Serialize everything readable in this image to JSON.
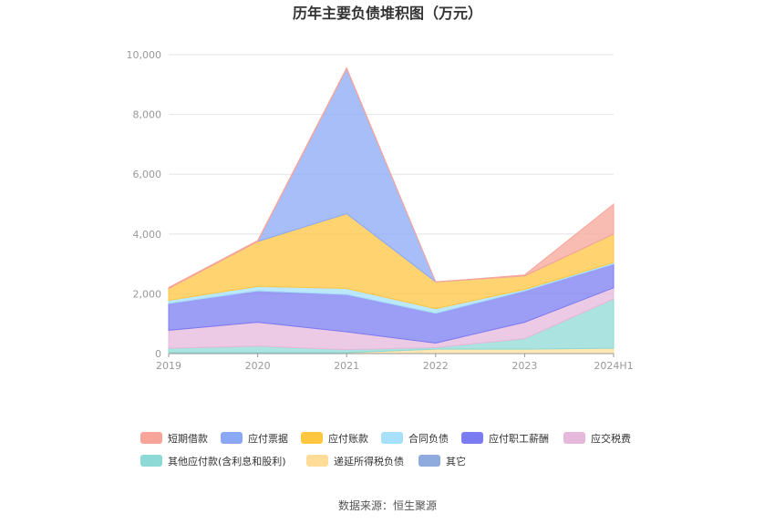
{
  "chart_data": {
    "type": "area",
    "stacked": true,
    "title": "历年主要负债堆积图（万元）",
    "x": [
      "2019",
      "2020",
      "2021",
      "2022",
      "2023",
      "2024H1"
    ],
    "ylim": [
      0,
      10000
    ],
    "yticks": [
      "0",
      "2,000",
      "4,000",
      "6,000",
      "8,000",
      "10,000"
    ],
    "grid": true,
    "legend_position": "bottom",
    "series": [
      {
        "name": "其它",
        "color": "#8faadc",
        "values": [
          0,
          0,
          0,
          0,
          0,
          0
        ]
      },
      {
        "name": "递延所得税负债",
        "color": "#ffdd99",
        "values": [
          30,
          30,
          30,
          150,
          150,
          180
        ]
      },
      {
        "name": "其他应付款(含利息和股利)",
        "color": "#8dd9d5",
        "values": [
          150,
          220,
          100,
          50,
          350,
          1650
        ]
      },
      {
        "name": "应交税费",
        "color": "#e6b8dc",
        "values": [
          600,
          800,
          600,
          150,
          550,
          370
        ]
      },
      {
        "name": "应付职工薪酬",
        "color": "#7b7cf2",
        "values": [
          900,
          1050,
          1250,
          1000,
          1050,
          800
        ]
      },
      {
        "name": "合同负债",
        "color": "#a6e0fa",
        "values": [
          100,
          150,
          200,
          150,
          50,
          50
        ]
      },
      {
        "name": "应付账款",
        "color": "#ffc640",
        "values": [
          400,
          1500,
          2500,
          900,
          450,
          950
        ]
      },
      {
        "name": "应付票据",
        "color": "#8ba8f7",
        "values": [
          0,
          0,
          4850,
          0,
          0,
          0
        ]
      },
      {
        "name": "短期借款",
        "color": "#f7a59a",
        "values": [
          30,
          30,
          30,
          0,
          30,
          1000
        ]
      }
    ],
    "legend_order": [
      "短期借款",
      "应付票据",
      "应付账款",
      "合同负债",
      "应付职工薪酬",
      "应交税费",
      "其他应付款(含利息和股利)",
      "递延所得税负债",
      "其它"
    ]
  },
  "footer": {
    "source": "数据来源：恒生聚源"
  }
}
